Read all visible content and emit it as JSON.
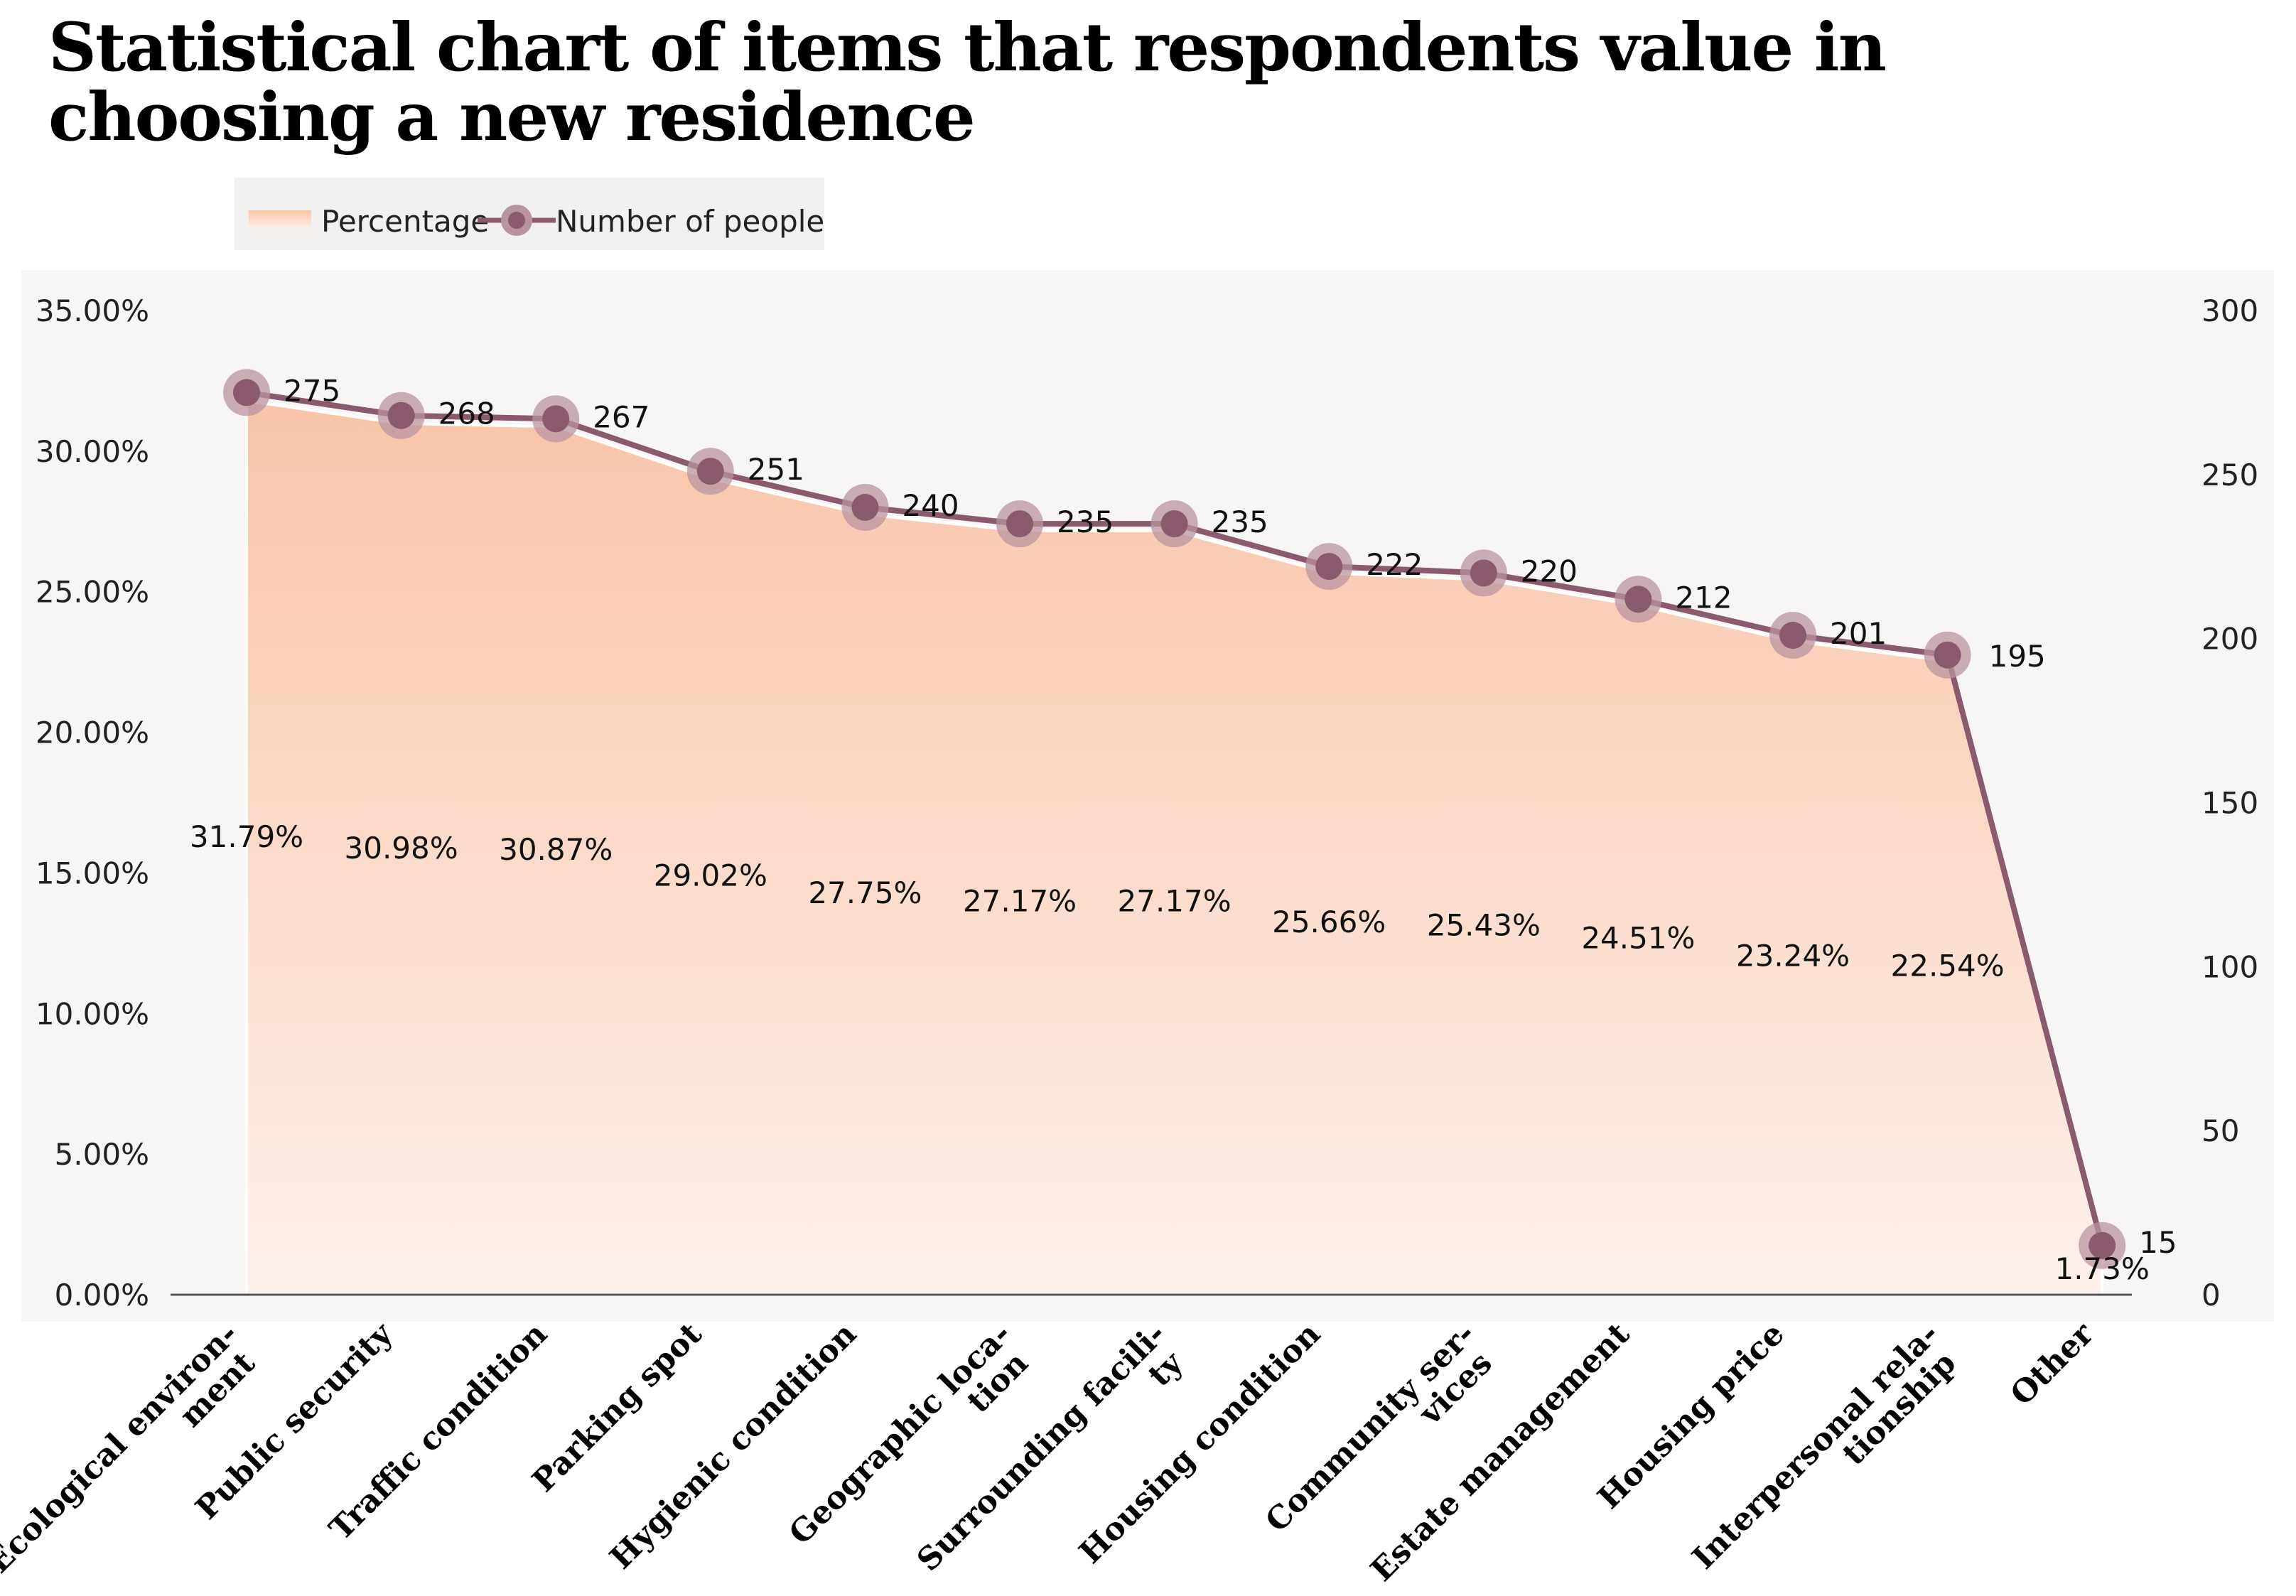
{
  "title": "Statistical chart of items that respondents value in choosing a new residence",
  "chart_data": {
    "type": "line",
    "title": "Statistical chart of items that respondents value in choosing a new residence",
    "categories": [
      "Ecological environ- ment",
      "Public security",
      "Traffic condition",
      "Parking spot",
      "Hygienic condition",
      "Geographic loca- tion",
      "Surrounding facili- ty",
      "Housing condition",
      "Community ser- vices",
      "Estate management",
      "Housing price",
      "Interpersonal rela- tionship",
      "Other"
    ],
    "category_lines": [
      [
        "Ecological environ-",
        "ment"
      ],
      [
        "Public security"
      ],
      [
        "Traffic condition"
      ],
      [
        "Parking spot"
      ],
      [
        "Hygienic condition"
      ],
      [
        "Geographic loca-",
        "tion"
      ],
      [
        "Surrounding facili-",
        "ty"
      ],
      [
        "Housing condition"
      ],
      [
        "Community ser-",
        "vices"
      ],
      [
        "Estate management"
      ],
      [
        "Housing price"
      ],
      [
        "Interpersonal rela-",
        "tionship"
      ],
      [
        "Other"
      ]
    ],
    "series": [
      {
        "name": "Percentage",
        "type": "area",
        "axis": "left",
        "values": [
          31.79,
          30.98,
          30.87,
          29.02,
          27.75,
          27.17,
          27.17,
          25.66,
          25.43,
          24.51,
          23.24,
          22.54,
          1.73
        ],
        "labels": [
          "31.79%",
          "30.98%",
          "30.87%",
          "29.02%",
          "27.75%",
          "27.17%",
          "27.17%",
          "25.66%",
          "25.43%",
          "24.51%",
          "23.24%",
          "22.54%",
          "1.73%"
        ]
      },
      {
        "name": "Number of people",
        "type": "line",
        "axis": "right",
        "values": [
          275,
          268,
          267,
          251,
          240,
          235,
          235,
          222,
          220,
          212,
          201,
          195,
          15
        ],
        "labels": [
          "275",
          "268",
          "267",
          "251",
          "240",
          "235",
          "235",
          "222",
          "220",
          "212",
          "201",
          "195",
          "15"
        ]
      }
    ],
    "y_left": {
      "range": [
        0,
        35
      ],
      "ticks": [
        0,
        5,
        10,
        15,
        20,
        25,
        30,
        35
      ],
      "tick_labels": [
        "0.00%",
        "5.00%",
        "10.00%",
        "15.00%",
        "20.00%",
        "25.00%",
        "30.00%",
        "35.00%"
      ]
    },
    "y_right": {
      "range": [
        0,
        300
      ],
      "ticks": [
        0,
        50,
        100,
        150,
        200,
        250,
        300
      ],
      "tick_labels": [
        "0",
        "50",
        "100",
        "150",
        "200",
        "250",
        "300"
      ]
    },
    "legend": {
      "placement": "top-left",
      "items": [
        "Percentage",
        "Number of people"
      ]
    },
    "grid": false,
    "colors": {
      "area_top": "#f9c4a8",
      "area_bottom": "#fdf1ec",
      "line": "#8a5a6e",
      "marker_halo": "#b8949f",
      "plot_bg": "#f7f6f4",
      "axis": "#555555"
    }
  }
}
